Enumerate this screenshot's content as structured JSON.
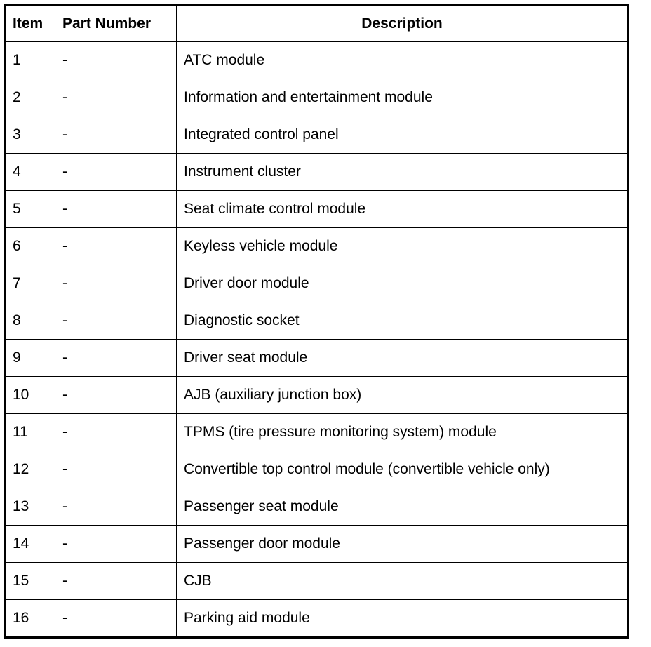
{
  "headers": [
    "Item",
    "Part Number",
    "Description"
  ],
  "rows": [
    [
      "1",
      "-",
      "ATC module"
    ],
    [
      "2",
      "-",
      "Information and entertainment module"
    ],
    [
      "3",
      "-",
      "Integrated control panel"
    ],
    [
      "4",
      "-",
      "Instrument cluster"
    ],
    [
      "5",
      "-",
      "Seat climate control module"
    ],
    [
      "6",
      "-",
      "Keyless vehicle module"
    ],
    [
      "7",
      "-",
      "Driver door module"
    ],
    [
      "8",
      "-",
      "Diagnostic socket"
    ],
    [
      "9",
      "-",
      "Driver seat module"
    ],
    [
      "10",
      "-",
      "AJB (auxiliary junction box)"
    ],
    [
      "11",
      "-",
      "TPMS (tire pressure monitoring system) module"
    ],
    [
      "12",
      "-",
      "Convertible top control module (convertible vehicle only)"
    ],
    [
      "13",
      "-",
      "Passenger seat module"
    ],
    [
      "14",
      "-",
      "Passenger door module"
    ],
    [
      "15",
      "-",
      "CJB"
    ],
    [
      "16",
      "-",
      "Parking aid module"
    ]
  ]
}
